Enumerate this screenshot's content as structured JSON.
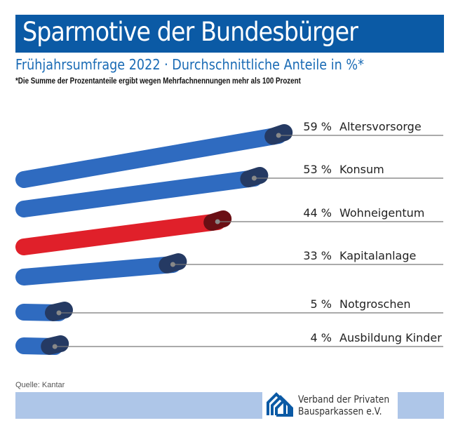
{
  "title": "Sparmotive der Bundesbürger",
  "subtitle": "Frühjahrsumfrage 2022 · Durchschnittliche Anteile in %*",
  "footnote": "*Die Summe der Prozentanteile ergibt wegen Mehrfachnennungen mehr als 100 Prozent",
  "source": "Quelle: Kantar",
  "logo": {
    "line1": "Verband der Privaten",
    "line2": "Bausparkassen e.V."
  },
  "colors": {
    "title_bg": "#0b5aa5",
    "bar": "#2f6bc0",
    "highlight": "#e0202a",
    "band": "#aec6e8"
  },
  "chart_data": {
    "type": "bar",
    "orientation": "horizontal",
    "style": "3d-perspective",
    "categories": [
      "Altersvorsorge",
      "Konsum",
      "Wohneigentum",
      "Kapitalanlage",
      "Notgroschen",
      "Ausbildung Kinder"
    ],
    "values": [
      59,
      53,
      44,
      33,
      5,
      4
    ],
    "value_labels": [
      "59 %",
      "53 %",
      "44 %",
      "33 %",
      "5 %",
      "4 %"
    ],
    "highlight": "Wohneigentum"
  }
}
